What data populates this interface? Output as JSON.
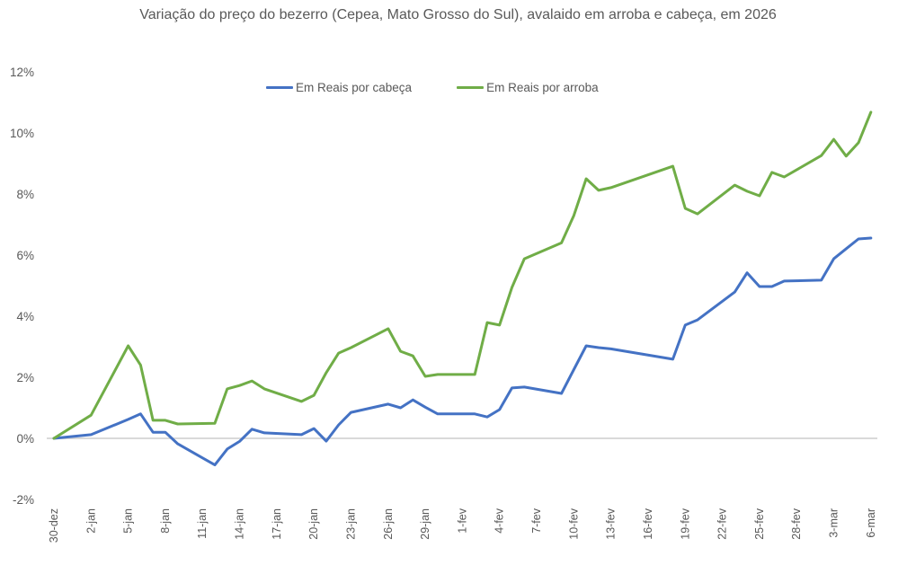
{
  "chart_data": {
    "type": "line",
    "title": "Variação do preço do bezerro (Cepea, Mato Grosso do Sul), avalaido em arroba e cabeça, em 2026",
    "xlabel": "",
    "ylabel": "",
    "ylim": [
      -2,
      12
    ],
    "yticks": [
      "-2%",
      "0%",
      "2%",
      "4%",
      "6%",
      "8%",
      "10%",
      "12%"
    ],
    "ytick_values": [
      -2,
      0,
      2,
      4,
      6,
      8,
      10,
      12
    ],
    "xtick_labels": [
      "30-dez",
      "2-jan",
      "5-jan",
      "8-jan",
      "11-jan",
      "14-jan",
      "17-jan",
      "20-jan",
      "23-jan",
      "26-jan",
      "29-jan",
      "1-fev",
      "4-fev",
      "7-fev",
      "10-fev",
      "13-fev",
      "16-fev",
      "19-fev",
      "22-fev",
      "25-fev",
      "28-fev",
      "3-mar",
      "6-mar"
    ],
    "xtick_days": [
      0,
      3,
      6,
      9,
      12,
      15,
      18,
      21,
      24,
      27,
      30,
      33,
      36,
      39,
      42,
      45,
      48,
      51,
      54,
      57,
      60,
      63,
      66
    ],
    "grid": false,
    "zero_line": true,
    "legend_position": "top",
    "x": [
      "30-dez",
      "2-jan",
      "5-jan",
      "6-jan",
      "7-jan",
      "8-jan",
      "9-jan",
      "12-jan",
      "13-jan",
      "14-jan",
      "15-jan",
      "16-jan",
      "19-jan",
      "20-jan",
      "21-jan",
      "22-jan",
      "23-jan",
      "26-jan",
      "27-jan",
      "28-jan",
      "29-jan",
      "30-jan",
      "2-fev",
      "3-fev",
      "4-fev",
      "5-fev",
      "6-fev",
      "9-fev",
      "10-fev",
      "11-fev",
      "12-fev",
      "13-fev",
      "18-fev",
      "19-fev",
      "20-fev",
      "23-fev",
      "24-fev",
      "25-fev",
      "26-fev",
      "27-fev",
      "2-mar",
      "3-mar",
      "4-mar",
      "5-mar",
      "6-mar"
    ],
    "x_days": [
      0,
      3,
      6,
      7,
      8,
      9,
      10,
      13,
      14,
      15,
      16,
      17,
      20,
      21,
      22,
      23,
      24,
      27,
      28,
      29,
      30,
      31,
      34,
      35,
      36,
      37,
      38,
      41,
      42,
      43,
      44,
      45,
      50,
      51,
      52,
      55,
      56,
      57,
      58,
      59,
      62,
      63,
      64,
      65,
      66
    ],
    "series": [
      {
        "name": "Em Reais por cabeça",
        "color": "#4472C4",
        "values": [
          0.0,
          0.12,
          0.62,
          0.8,
          0.2,
          0.2,
          -0.18,
          -0.87,
          -0.35,
          -0.1,
          0.3,
          0.18,
          0.12,
          0.32,
          -0.09,
          0.44,
          0.85,
          1.12,
          1.0,
          1.26,
          1.02,
          0.8,
          0.8,
          0.7,
          0.94,
          1.65,
          1.68,
          1.47,
          2.25,
          3.03,
          2.97,
          2.93,
          2.59,
          3.71,
          3.88,
          4.79,
          5.42,
          4.97,
          4.97,
          5.15,
          5.18,
          5.88,
          6.21,
          6.53,
          6.56
        ]
      },
      {
        "name": "Em Reais por arroba",
        "color": "#70AD47",
        "values": [
          0.0,
          0.76,
          3.03,
          2.4,
          0.59,
          0.59,
          0.47,
          0.49,
          1.62,
          1.73,
          1.88,
          1.62,
          1.21,
          1.41,
          2.15,
          2.79,
          2.97,
          3.59,
          2.85,
          2.7,
          2.03,
          2.09,
          2.09,
          3.79,
          3.71,
          4.94,
          5.88,
          6.4,
          7.29,
          8.5,
          8.12,
          8.21,
          8.91,
          7.53,
          7.35,
          8.29,
          8.09,
          7.94,
          8.71,
          8.56,
          9.26,
          9.79,
          9.24,
          9.68,
          10.68
        ]
      }
    ]
  },
  "legend": {
    "items": [
      {
        "label": "Em Reais por cabeça",
        "color": "#4472C4"
      },
      {
        "label": "Em Reais por arroba",
        "color": "#70AD47"
      }
    ]
  }
}
